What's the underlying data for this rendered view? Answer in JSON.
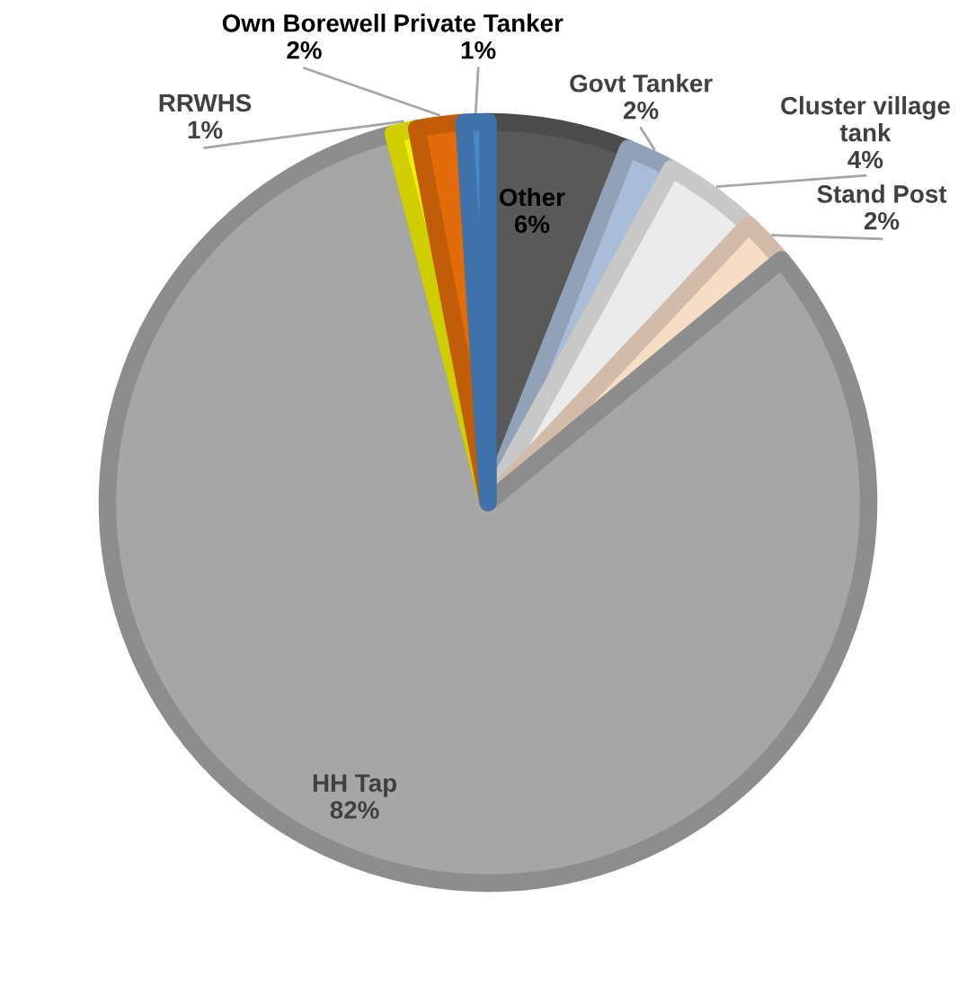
{
  "chart_data": {
    "type": "pie",
    "categories": [
      "Other",
      "Govt Tanker",
      "Cluster village\ntank",
      "Stand Post",
      "HH Tap",
      "RRWHS",
      "Own Borewell",
      "Private Tanker"
    ],
    "values": [
      6,
      2,
      4,
      2,
      82,
      1,
      2,
      1
    ],
    "value_labels": [
      "6%",
      "2%",
      "4%",
      "2%",
      "82%",
      "1%",
      "2%",
      "1%"
    ],
    "colors": [
      "#595959",
      "#a9bdd9",
      "#ebebeb",
      "#f7dcc6",
      "#a6a6a6",
      "#f2f200",
      "#e36c0a",
      "#4a86c8"
    ],
    "legend": false
  }
}
